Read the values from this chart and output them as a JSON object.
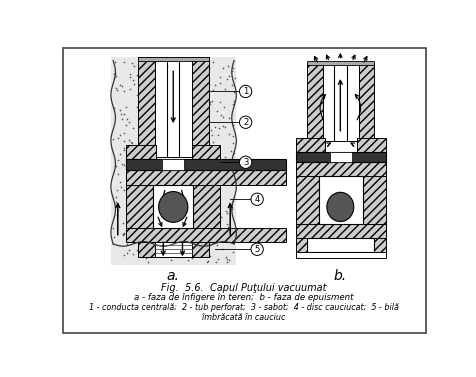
{
  "title_line1": "Fig.  5.6.  Capul Puţului vacuumat",
  "title_line2": "a - faza de înfigere în teren;  b - faza de epuisment",
  "title_line3": "1 - conducta centrală;  2 - tub perforat;  3 - sabot;  4 - disc cauciucat;  5 - bilă",
  "title_line4": "îmbrăcată în cauciuc",
  "label_a": "a.",
  "label_b": "b.",
  "figure_bg": "#ffffff"
}
